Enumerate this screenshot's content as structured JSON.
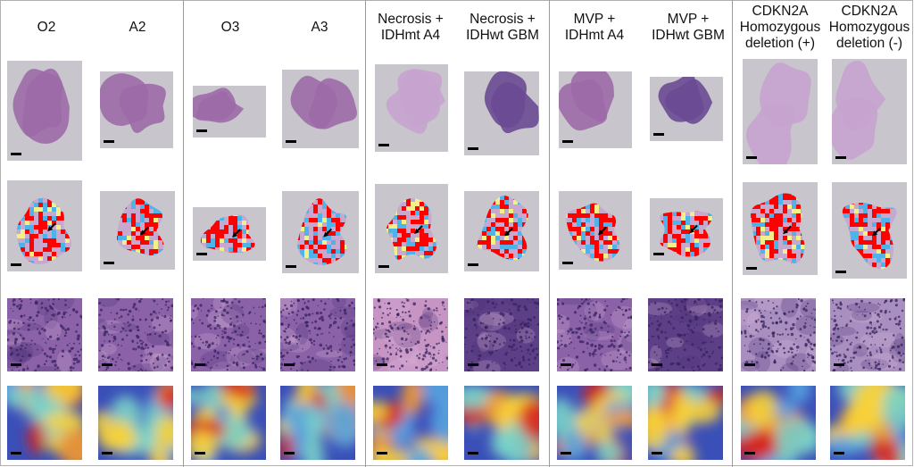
{
  "columns": [
    {
      "label": "O2"
    },
    {
      "label": "A2"
    },
    {
      "label": "O3"
    },
    {
      "label": "A3"
    },
    {
      "label": "Necrosis +\nIDHmt A4"
    },
    {
      "label": "Necrosis +\nIDHwt GBM"
    },
    {
      "label": "MVP +\nIDHmt A4"
    },
    {
      "label": "MVP +\nIDHwt GBM"
    },
    {
      "label": "CDKN2A\nHomozygous\ndeletion (+)"
    },
    {
      "label": "CDKN2A\nHomozygous\ndeletion (-)"
    }
  ],
  "rows": [
    {
      "kind": "whole-slide-image"
    },
    {
      "kind": "attention-map-overlay"
    },
    {
      "kind": "histology-patch"
    },
    {
      "kind": "patch-heatmap"
    }
  ],
  "colors": {
    "tissue": "#9d6aa8",
    "tissue_light": "#c7a3cf",
    "tissue_dark": "#6a4a93",
    "slide_bg": "#c8c6cc",
    "attention_high": "#ff0000",
    "attention_mid": "#f3f08a",
    "attention_low": "#4db3ea",
    "heat_high": "#d7261e",
    "heat_mid": "#f7d23a",
    "heat_low": "#3a4fb8"
  },
  "icons": {
    "arrow": "black-arrow-icon",
    "scale": "scale-bar-icon"
  }
}
